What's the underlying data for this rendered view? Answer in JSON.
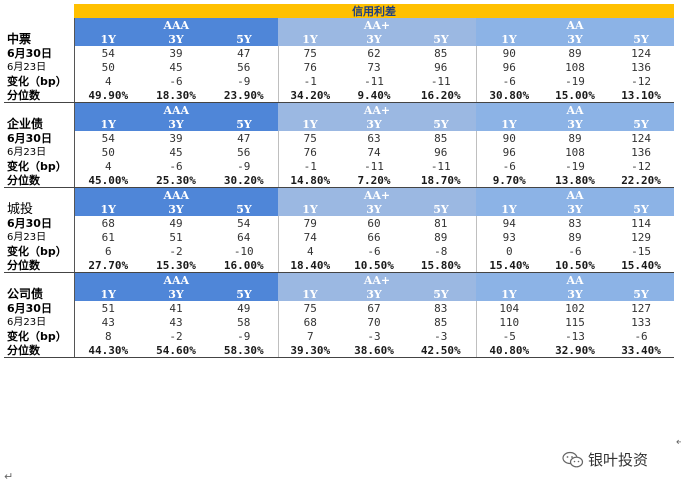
{
  "title": "信用利差",
  "groups": [
    "AAA",
    "AA+",
    "AA"
  ],
  "tenors": [
    "1Y",
    "3Y",
    "5Y"
  ],
  "row_labels": [
    "6月30日",
    "6月23日",
    "变化（bp）",
    "分位数"
  ],
  "sections": [
    {
      "name": "中票",
      "rows": [
        [
          "54",
          "39",
          "47",
          "75",
          "62",
          "85",
          "90",
          "89",
          "124"
        ],
        [
          "50",
          "45",
          "56",
          "76",
          "73",
          "96",
          "96",
          "108",
          "136"
        ],
        [
          "4",
          "-6",
          "-9",
          "-1",
          "-11",
          "-11",
          "-6",
          "-19",
          "-12"
        ],
        [
          "49.90%",
          "18.30%",
          "23.90%",
          "34.20%",
          "9.40%",
          "16.20%",
          "30.80%",
          "15.00%",
          "13.10%"
        ]
      ]
    },
    {
      "name": "企业债",
      "rows": [
        [
          "54",
          "39",
          "47",
          "75",
          "63",
          "85",
          "90",
          "89",
          "124"
        ],
        [
          "50",
          "45",
          "56",
          "76",
          "74",
          "96",
          "96",
          "108",
          "136"
        ],
        [
          "4",
          "-6",
          "-9",
          "-1",
          "-11",
          "-11",
          "-6",
          "-19",
          "-12"
        ],
        [
          "45.00%",
          "25.30%",
          "30.20%",
          "14.80%",
          "7.20%",
          "18.70%",
          "9.70%",
          "13.80%",
          "22.20%"
        ]
      ]
    },
    {
      "name": "城投",
      "rows": [
        [
          "68",
          "49",
          "54",
          "79",
          "60",
          "81",
          "94",
          "83",
          "114"
        ],
        [
          "61",
          "51",
          "64",
          "74",
          "66",
          "89",
          "93",
          "89",
          "129"
        ],
        [
          "6",
          "-2",
          "-10",
          "4",
          "-6",
          "-8",
          "0",
          "-6",
          "-15"
        ],
        [
          "27.70%",
          "15.30%",
          "16.00%",
          "18.40%",
          "10.50%",
          "15.80%",
          "15.40%",
          "10.50%",
          "15.40%"
        ]
      ]
    },
    {
      "name": "公司债",
      "rows": [
        [
          "51",
          "41",
          "49",
          "75",
          "67",
          "83",
          "104",
          "102",
          "127"
        ],
        [
          "43",
          "43",
          "58",
          "68",
          "70",
          "85",
          "110",
          "115",
          "133"
        ],
        [
          "8",
          "-2",
          "-9",
          "7",
          "-3",
          "-3",
          "-5",
          "-13",
          "-6"
        ],
        [
          "44.30%",
          "54.60%",
          "58.30%",
          "39.30%",
          "38.60%",
          "42.50%",
          "40.80%",
          "32.90%",
          "33.40%"
        ]
      ]
    }
  ],
  "watermark": "银叶投资",
  "return_mark": "↵",
  "wechat_icon": "wechat-icon"
}
